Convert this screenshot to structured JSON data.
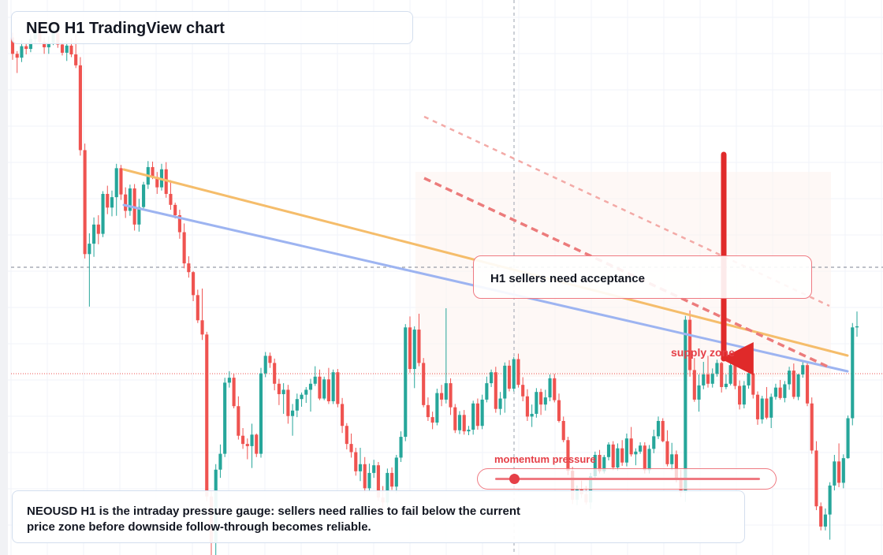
{
  "title": "NEO H1 TradingView chart",
  "callout": "H1 sellers need acceptance",
  "zone_label": "supply zone",
  "gauge": {
    "label": "momentum pressure",
    "level": 0.07
  },
  "note": "NEOUSD H1 is the intraday pressure gauge: sellers need rallies to fail below the current price zone before downside follow-through becomes reliable.",
  "colors": {
    "up": "#26a69a",
    "down": "#ef5350",
    "accent_red": "#e53f47",
    "trend_orange": "#f5bd6b",
    "trend_blue": "#9db4f1",
    "dashed_red": "#ec7b7b",
    "box_border": "#d3deee"
  },
  "icons": [
    "down-arrow-icon"
  ],
  "chart_data": {
    "type": "candlestick",
    "symbol": "NEOUSD",
    "timeframe": "H1",
    "y_range": [
      0,
      100
    ],
    "candles": [
      [
        94.6,
        95.5,
        90.5,
        91.6
      ],
      [
        91.6,
        92.1,
        88.1,
        90.9
      ],
      [
        90.9,
        94.1,
        90.1,
        93.0
      ],
      [
        93.0,
        93.6,
        91.5,
        92.5
      ],
      [
        92.5,
        95.2,
        91.9,
        94.3
      ],
      [
        94.3,
        97.0,
        93.4,
        96.1
      ],
      [
        96.1,
        96.9,
        93.4,
        93.8
      ],
      [
        93.8,
        94.6,
        91.6,
        92.8
      ],
      [
        92.8,
        94.8,
        91.6,
        93.6
      ],
      [
        93.6,
        96.8,
        93.2,
        95.4
      ],
      [
        95.4,
        96.5,
        92.7,
        93.3
      ],
      [
        93.3,
        94.1,
        91.3,
        91.8
      ],
      [
        91.8,
        94.0,
        90.3,
        93.1
      ],
      [
        93.1,
        94.4,
        91.0,
        91.5
      ],
      [
        91.5,
        95.2,
        89.0,
        89.5
      ],
      [
        89.5,
        91.0,
        73.0,
        74.0
      ],
      [
        74.0,
        75.2,
        54.2,
        55.0
      ],
      [
        55.0,
        58.8,
        45.4,
        56.9
      ],
      [
        56.9,
        61.7,
        54.5,
        60.4
      ],
      [
        60.4,
        62.1,
        56.8,
        58.7
      ],
      [
        58.7,
        66.5,
        58.1,
        66.0
      ],
      [
        66.0,
        67.5,
        62.3,
        63.5
      ],
      [
        63.5,
        66.6,
        61.9,
        65.4
      ],
      [
        65.4,
        71.5,
        62.0,
        70.7
      ],
      [
        70.7,
        71.3,
        64.9,
        65.9
      ],
      [
        65.9,
        67.2,
        61.6,
        62.9
      ],
      [
        62.9,
        67.7,
        62.0,
        67.0
      ],
      [
        67.0,
        67.8,
        59.3,
        60.4
      ],
      [
        60.4,
        65.1,
        59.1,
        63.6
      ],
      [
        63.6,
        68.2,
        63.1,
        67.7
      ],
      [
        67.7,
        72.0,
        66.9,
        70.9
      ],
      [
        70.9,
        71.9,
        68.7,
        69.1
      ],
      [
        69.1,
        70.0,
        66.0,
        67.2
      ],
      [
        67.2,
        71.5,
        66.6,
        70.5
      ],
      [
        70.5,
        71.8,
        65.3,
        66.0
      ],
      [
        66.0,
        68.5,
        63.1,
        64.0
      ],
      [
        64.0,
        64.4,
        61.5,
        62.1
      ],
      [
        62.1,
        63.1,
        57.8,
        59.0
      ],
      [
        59.0,
        60.6,
        52.4,
        53.3
      ],
      [
        53.3,
        54.6,
        50.7,
        51.7
      ],
      [
        51.7,
        51.9,
        46.4,
        47.5
      ],
      [
        47.5,
        48.5,
        42.4,
        42.9
      ],
      [
        42.9,
        48.7,
        39.3,
        40.3
      ],
      [
        40.3,
        40.8,
        9.8,
        10.7
      ],
      [
        10.7,
        11.7,
        -2.0,
        2.2
      ],
      [
        2.2,
        16.6,
        -2.0,
        15.6
      ],
      [
        15.6,
        20.2,
        14.1,
        18.5
      ],
      [
        18.5,
        32.4,
        17.9,
        31.5
      ],
      [
        31.5,
        33.6,
        30.6,
        32.4
      ],
      [
        32.4,
        33.2,
        26.8,
        27.2
      ],
      [
        27.2,
        29.0,
        21.1,
        21.8
      ],
      [
        21.8,
        23.2,
        19.4,
        20.3
      ],
      [
        20.3,
        21.3,
        17.5,
        19.9
      ],
      [
        19.9,
        24.0,
        15.9,
        22.0
      ],
      [
        22.0,
        22.2,
        17.9,
        18.5
      ],
      [
        18.5,
        34.2,
        17.8,
        33.2
      ],
      [
        33.2,
        37.1,
        32.5,
        36.4
      ],
      [
        36.4,
        37.0,
        34.2,
        35.1
      ],
      [
        35.1,
        35.9,
        30.1,
        31.3
      ],
      [
        31.3,
        32.2,
        27.4,
        29.4
      ],
      [
        29.4,
        31.4,
        25.8,
        30.2
      ],
      [
        30.2,
        31.1,
        24.0,
        25.4
      ],
      [
        25.4,
        27.6,
        21.8,
        26.4
      ],
      [
        26.4,
        29.5,
        25.2,
        28.5
      ],
      [
        28.5,
        29.7,
        27.1,
        29.3
      ],
      [
        29.3,
        30.7,
        27.8,
        30.2
      ],
      [
        30.2,
        32.2,
        26.2,
        31.3
      ],
      [
        31.3,
        34.5,
        30.9,
        32.6
      ],
      [
        32.6,
        33.9,
        28.3,
        28.6
      ],
      [
        28.6,
        32.6,
        28.3,
        32.1
      ],
      [
        32.1,
        34.2,
        27.6,
        28.1
      ],
      [
        28.1,
        33.9,
        27.6,
        33.4
      ],
      [
        33.4,
        34.0,
        27.0,
        27.6
      ],
      [
        27.6,
        28.7,
        22.3,
        23.6
      ],
      [
        23.6,
        24.1,
        19.3,
        20.3
      ],
      [
        20.3,
        22.2,
        17.8,
        18.8
      ],
      [
        18.8,
        19.6,
        14.5,
        15.3
      ],
      [
        15.3,
        19.6,
        13.5,
        16.6
      ],
      [
        16.6,
        17.9,
        11.4,
        12.2
      ],
      [
        12.2,
        16.7,
        11.5,
        15.0
      ],
      [
        15.0,
        17.4,
        14.1,
        16.4
      ],
      [
        16.4,
        17.0,
        9.9,
        10.5
      ],
      [
        10.5,
        12.6,
        8.4,
        9.6
      ],
      [
        9.6,
        15.8,
        8.8,
        15.0
      ],
      [
        15.0,
        16.0,
        11.9,
        12.5
      ],
      [
        12.5,
        18.3,
        11.3,
        17.8
      ],
      [
        17.8,
        22.6,
        17.0,
        21.6
      ],
      [
        21.6,
        42.2,
        20.8,
        41.6
      ],
      [
        41.6,
        43.6,
        33.3,
        34.0
      ],
      [
        34.0,
        41.8,
        30.5,
        41.2
      ],
      [
        41.2,
        44.1,
        34.5,
        35.1
      ],
      [
        35.1,
        36.0,
        27.0,
        27.4
      ],
      [
        27.4,
        28.8,
        24.5,
        25.2
      ],
      [
        25.2,
        26.2,
        23.0,
        24.2
      ],
      [
        24.2,
        30.4,
        23.7,
        29.6
      ],
      [
        29.6,
        31.1,
        27.2,
        28.4
      ],
      [
        28.4,
        45.1,
        27.7,
        31.4
      ],
      [
        31.4,
        32.3,
        25.6,
        27.0
      ],
      [
        27.0,
        27.6,
        22.3,
        22.8
      ],
      [
        22.8,
        26.3,
        22.1,
        25.6
      ],
      [
        25.6,
        26.5,
        22.0,
        22.6
      ],
      [
        22.6,
        23.6,
        21.9,
        22.9
      ],
      [
        22.9,
        28.2,
        22.0,
        27.7
      ],
      [
        27.7,
        28.6,
        22.9,
        23.6
      ],
      [
        23.6,
        29.3,
        23.0,
        28.4
      ],
      [
        28.4,
        32.6,
        27.9,
        31.4
      ],
      [
        31.4,
        33.9,
        30.7,
        33.4
      ],
      [
        33.4,
        34.4,
        26.0,
        26.7
      ],
      [
        26.7,
        29.8,
        25.6,
        28.6
      ],
      [
        28.6,
        35.2,
        26.0,
        34.6
      ],
      [
        34.6,
        35.6,
        29.9,
        30.4
      ],
      [
        30.4,
        36.2,
        29.9,
        35.8
      ],
      [
        35.8,
        36.8,
        30.6,
        31.1
      ],
      [
        31.1,
        32.5,
        28.1,
        29.0
      ],
      [
        29.0,
        30.3,
        24.5,
        25.3
      ],
      [
        25.3,
        27.5,
        23.4,
        25.8
      ],
      [
        25.8,
        30.5,
        25.1,
        29.8
      ],
      [
        29.8,
        30.4,
        25.6,
        27.5
      ],
      [
        27.5,
        30.2,
        26.4,
        28.8
      ],
      [
        28.8,
        33.0,
        28.1,
        32.3
      ],
      [
        32.3,
        33.1,
        27.9,
        28.3
      ],
      [
        28.3,
        29.5,
        24.2,
        24.5
      ],
      [
        24.5,
        25.3,
        20.6,
        21.0
      ],
      [
        21.0,
        21.6,
        14.6,
        15.4
      ],
      [
        15.4,
        16.1,
        9.3,
        10.1
      ],
      [
        10.1,
        12.7,
        9.1,
        12.0
      ],
      [
        12.0,
        13.6,
        10.4,
        11.1
      ],
      [
        11.1,
        12.6,
        9.2,
        9.6
      ],
      [
        9.6,
        15.0,
        8.4,
        14.4
      ],
      [
        14.4,
        18.9,
        13.9,
        18.3
      ],
      [
        18.3,
        19.2,
        14.9,
        15.3
      ],
      [
        15.3,
        18.3,
        14.9,
        17.9
      ],
      [
        17.9,
        20.6,
        17.3,
        20.2
      ],
      [
        20.2,
        20.8,
        15.5,
        16.0
      ],
      [
        16.0,
        20.4,
        15.4,
        19.5
      ],
      [
        19.5,
        21.0,
        16.3,
        16.9
      ],
      [
        16.9,
        22.2,
        16.2,
        21.3
      ],
      [
        21.3,
        23.4,
        18.0,
        18.4
      ],
      [
        18.4,
        19.5,
        16.4,
        18.9
      ],
      [
        18.9,
        20.6,
        18.5,
        20.0
      ],
      [
        20.0,
        20.6,
        14.9,
        15.5
      ],
      [
        15.5,
        20.1,
        14.9,
        19.4
      ],
      [
        19.4,
        22.9,
        18.6,
        21.7
      ],
      [
        21.7,
        25.3,
        21.2,
        24.5
      ],
      [
        24.5,
        25.0,
        20.6,
        20.8
      ],
      [
        20.8,
        22.8,
        16.2,
        16.6
      ],
      [
        16.6,
        20.5,
        15.5,
        18.4
      ],
      [
        18.4,
        19.1,
        13.3,
        13.8
      ],
      [
        13.8,
        15.6,
        10.6,
        11.4
      ],
      [
        11.4,
        43.7,
        9.7,
        43.0
      ],
      [
        43.0,
        44.7,
        32.6,
        33.8
      ],
      [
        33.8,
        36.0,
        28.0,
        28.4
      ],
      [
        28.4,
        33.0,
        26.2,
        31.0
      ],
      [
        31.0,
        35.3,
        30.3,
        33.0
      ],
      [
        33.0,
        36.4,
        30.6,
        31.3
      ],
      [
        31.3,
        34.1,
        30.6,
        33.1
      ],
      [
        33.1,
        35.7,
        32.6,
        35.1
      ],
      [
        35.1,
        35.3,
        29.7,
        30.7
      ],
      [
        30.7,
        33.0,
        30.3,
        31.3
      ],
      [
        31.3,
        35.5,
        31.0,
        34.7
      ],
      [
        34.7,
        36.5,
        30.3,
        30.9
      ],
      [
        30.9,
        31.9,
        26.6,
        27.5
      ],
      [
        27.5,
        31.8,
        26.8,
        31.0
      ],
      [
        31.0,
        34.8,
        30.4,
        33.2
      ],
      [
        33.2,
        33.8,
        28.6,
        29.3
      ],
      [
        29.3,
        29.9,
        23.8,
        24.8
      ],
      [
        24.8,
        29.1,
        24.0,
        28.6
      ],
      [
        28.6,
        30.7,
        24.8,
        25.1
      ],
      [
        25.1,
        29.5,
        23.2,
        28.9
      ],
      [
        28.9,
        31.3,
        28.4,
        30.6
      ],
      [
        30.6,
        32.0,
        28.4,
        28.7
      ],
      [
        28.7,
        31.8,
        27.9,
        31.2
      ],
      [
        31.2,
        34.4,
        30.2,
        33.7
      ],
      [
        33.7,
        35.0,
        28.5,
        28.9
      ],
      [
        28.9,
        33.1,
        28.3,
        33.0
      ],
      [
        33.0,
        35.5,
        32.4,
        34.7
      ],
      [
        34.7,
        35.4,
        27.2,
        27.7
      ],
      [
        27.7,
        28.8,
        18.5,
        19.1
      ],
      [
        19.1,
        20.8,
        8.2,
        8.9
      ],
      [
        8.9,
        9.6,
        4.5,
        5.2
      ],
      [
        5.2,
        8.5,
        4.5,
        7.4
      ],
      [
        7.4,
        13.3,
        2.8,
        12.7
      ],
      [
        12.7,
        18.3,
        11.8,
        17.1
      ],
      [
        17.1,
        20.4,
        12.4,
        13.2
      ],
      [
        13.2,
        18.4,
        12.2,
        17.7
      ],
      [
        17.7,
        25.5,
        17.6,
        25.0
      ],
      [
        25.0,
        42.4,
        23.7,
        41.6
      ],
      [
        41.6,
        44.5,
        39.9,
        41.8
      ]
    ]
  }
}
